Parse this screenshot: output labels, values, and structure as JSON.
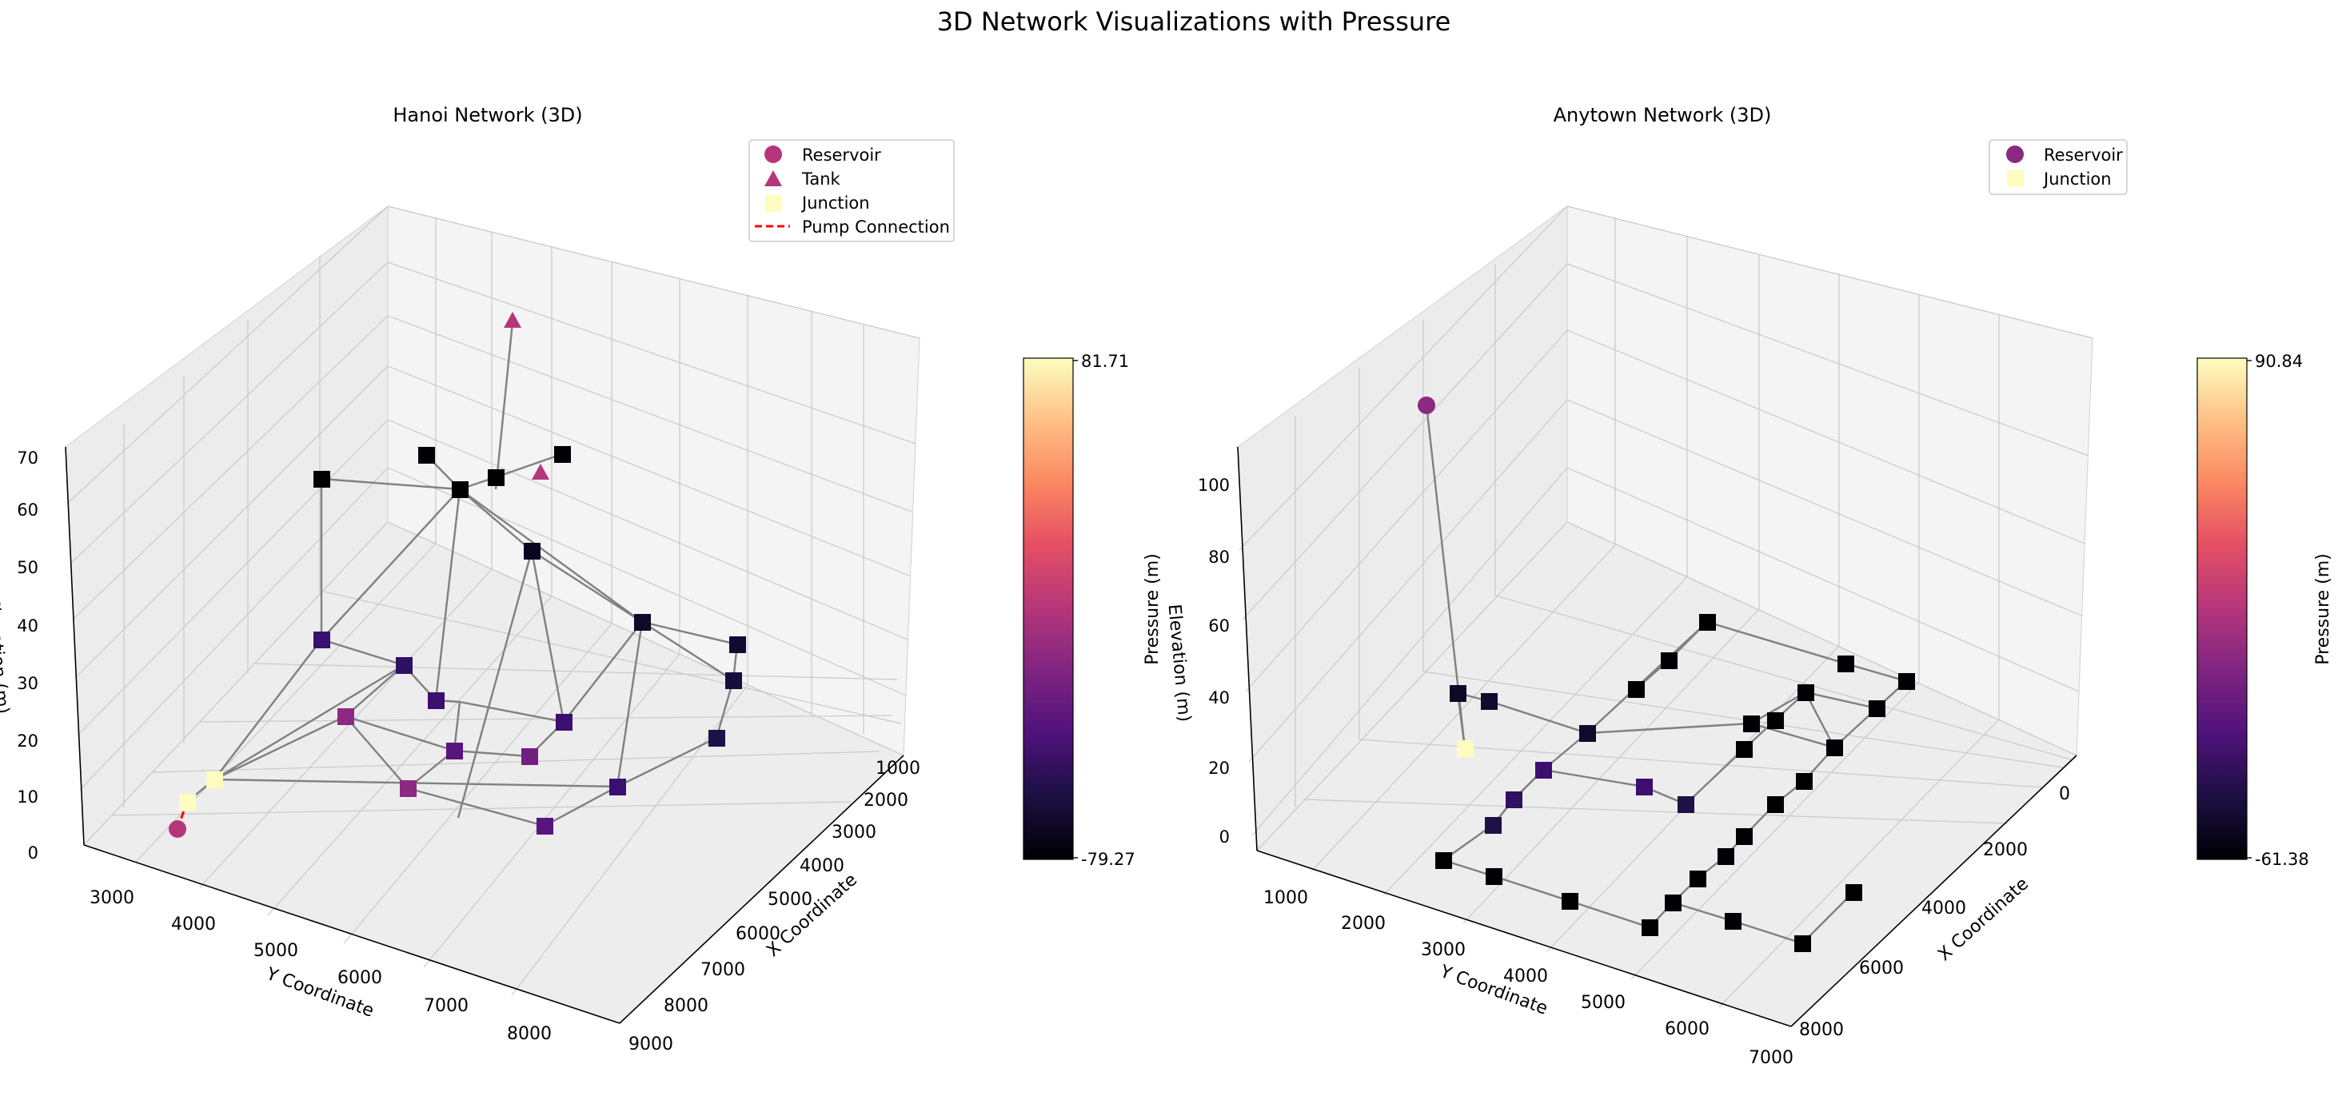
{
  "figure": {
    "title": "3D Network Visualizations with Pressure"
  },
  "chart_data": [
    {
      "type": "scatter",
      "title": "Hanoi Network (3D)",
      "xlabel": "X Coordinate",
      "ylabel": "Y Coordinate",
      "zlabel": "Elevation (m)",
      "x_ticks": [
        1000,
        2000,
        3000,
        4000,
        5000,
        6000,
        7000,
        8000,
        9000
      ],
      "y_ticks": [
        3000,
        4000,
        5000,
        6000,
        7000,
        8000
      ],
      "z_ticks": [
        0,
        10,
        20,
        30,
        40,
        50,
        60,
        70
      ],
      "legend": {
        "position": "upper-right",
        "entries": [
          "Reservoir",
          "Tank",
          "Junction",
          "Pump Connection"
        ]
      },
      "colorbar": {
        "label": "Pressure (m)",
        "min_label": "-79.27",
        "max_label": "81.71",
        "min": -79.27,
        "max": 81.71
      },
      "series_colors": {
        "reservoir": "#b5367a",
        "tank": "#b5367a",
        "pump": "#ff0000",
        "edge": "#808080"
      }
    },
    {
      "type": "scatter",
      "title": "Anytown Network (3D)",
      "xlabel": "X Coordinate",
      "ylabel": "Y Coordinate",
      "zlabel": "Elevation (m)",
      "x_ticks": [
        0,
        2000,
        4000,
        6000,
        8000
      ],
      "y_ticks": [
        1000,
        2000,
        3000,
        4000,
        5000,
        6000,
        7000
      ],
      "z_ticks": [
        0,
        20,
        40,
        60,
        80,
        100
      ],
      "legend": {
        "position": "upper-right",
        "entries": [
          "Reservoir",
          "Junction"
        ]
      },
      "colorbar": {
        "label": "Pressure (m)",
        "min_label": "-61.38",
        "max_label": "90.84",
        "min": -61.38,
        "max": 90.84
      },
      "series_colors": {
        "reservoir": "#8c2981",
        "edge": "#808080"
      }
    }
  ]
}
